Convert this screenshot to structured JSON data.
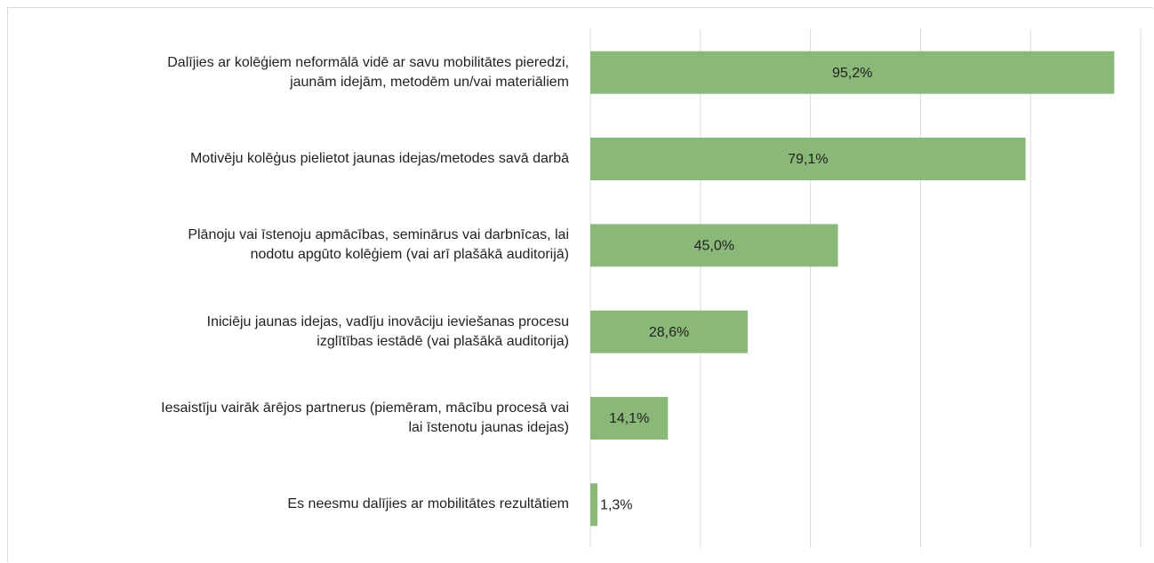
{
  "chart_data": {
    "type": "bar",
    "orientation": "horizontal",
    "categories": [
      "Dalījies ar kolēģiem neformālā vidē ar savu mobilitātes pieredzi,\njaunām idejām, metodēm un/vai materiāliem",
      "Motivēju kolēģus pielietot jaunas idejas/metodes savā darbā",
      "Plānoju vai īstenoju apmācības, seminārus vai darbnīcas, lai\nnodotu apgūto kolēģiem (vai arī plašākā auditorijā)",
      "Iniciēju jaunas idejas, vadīju inovāciju ieviešanas procesu\nizglītības iestādē (vai plašākā auditorija)",
      "Iesaistīju vairāk ārējos partnerus (piemēram, mācību procesā vai\nlai īstenotu jaunas idejas)",
      "Es neesmu dalījies ar mobilitātes rezultātiem"
    ],
    "values": [
      95.2,
      79.1,
      45.0,
      28.6,
      14.1,
      1.3
    ],
    "value_labels": [
      "95,2%",
      "79,1%",
      "45,0%",
      "28,6%",
      "14,1%",
      "1,3%"
    ],
    "color": "#8ab878",
    "xlim": [
      0,
      100
    ],
    "xticks": [
      0,
      20,
      40,
      60,
      80,
      100
    ],
    "grid": true
  }
}
